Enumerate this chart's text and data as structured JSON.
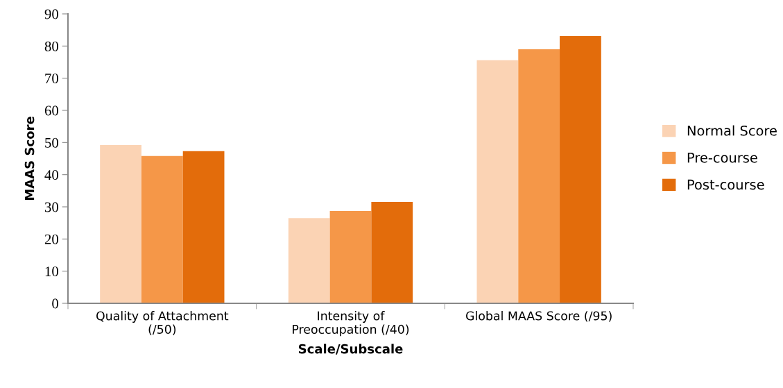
{
  "chart_data": {
    "type": "bar",
    "xlabel": "Scale/Subscale",
    "ylabel": "MAAS Score",
    "categories": [
      "Quality of Attachment\n(/50)",
      "Intensity of\nPreoccupation (/40)",
      "Global MAAS Score (/95)"
    ],
    "series": [
      {
        "name": "Normal Score",
        "color": "#fbd3b4",
        "values": [
          49.2,
          26.5,
          75.6
        ]
      },
      {
        "name": "Pre-course",
        "color": "#f59748",
        "values": [
          45.8,
          28.7,
          79.0
        ]
      },
      {
        "name": "Post-course",
        "color": "#e36c0b",
        "values": [
          47.3,
          31.5,
          83.1
        ]
      }
    ],
    "ylim": [
      0,
      90
    ],
    "yticks": [
      0,
      10,
      20,
      30,
      40,
      50,
      60,
      70,
      80,
      90
    ],
    "grid": false,
    "legend": "right"
  }
}
